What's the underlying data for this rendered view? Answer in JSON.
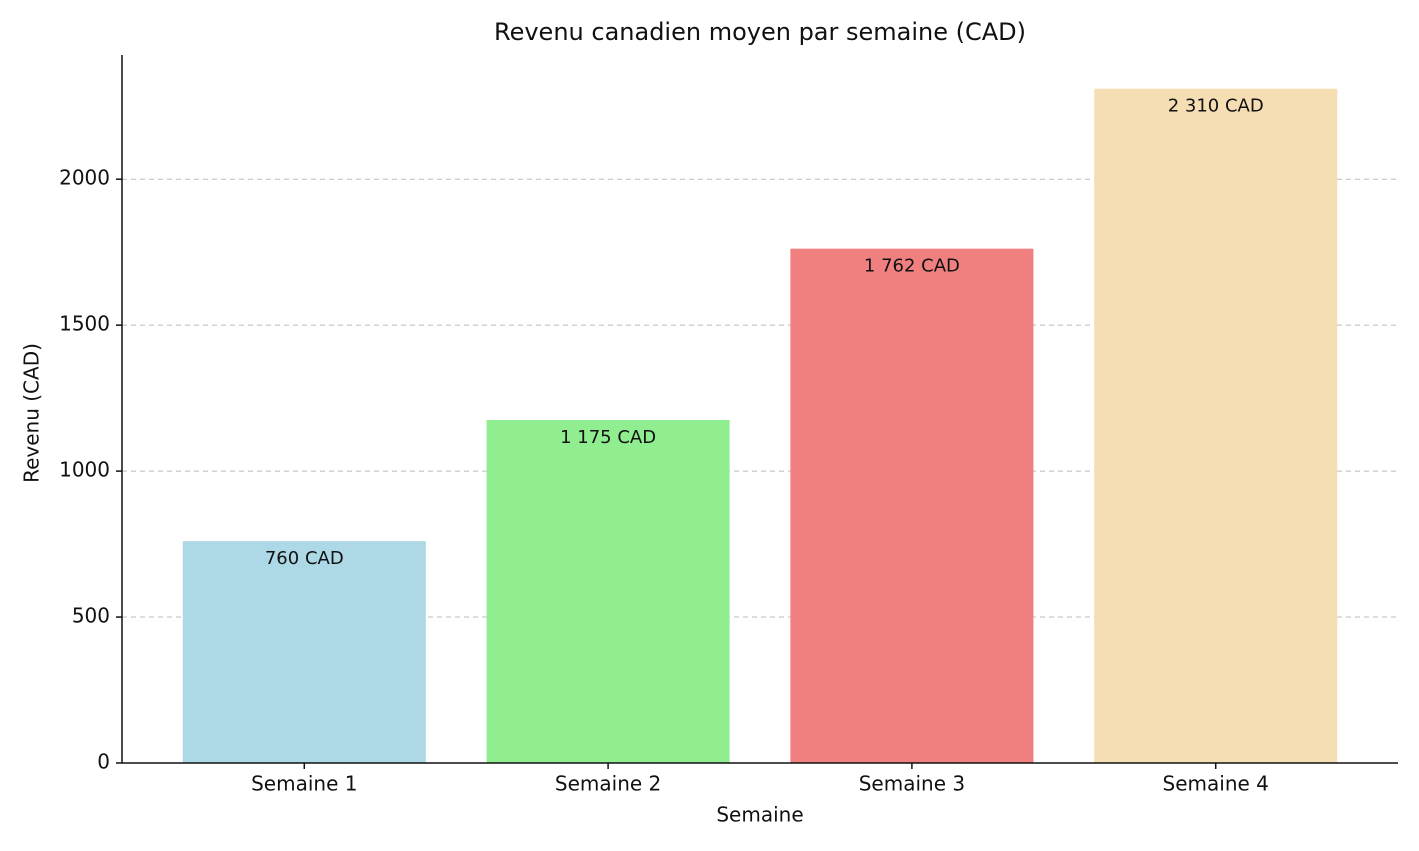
{
  "chart_data": {
    "type": "bar",
    "title": "Revenu canadien moyen par semaine (CAD)",
    "x_label": "Semaine",
    "y_label": "Revenu (CAD)",
    "categories": [
      "Semaine 1",
      "Semaine 2",
      "Semaine 3",
      "Semaine 4"
    ],
    "values": [
      760,
      1175,
      1762,
      2310
    ],
    "value_labels": [
      "760 CAD",
      "1 175 CAD",
      "1 762 CAD",
      "2 310 CAD"
    ],
    "colors": [
      "#add8e6",
      "#90ee90",
      "#f08080",
      "#f5deb3"
    ],
    "ylim": [
      0,
      2425.5
    ],
    "yticks": [
      0,
      500,
      1000,
      1500,
      2000
    ],
    "grid": true
  }
}
